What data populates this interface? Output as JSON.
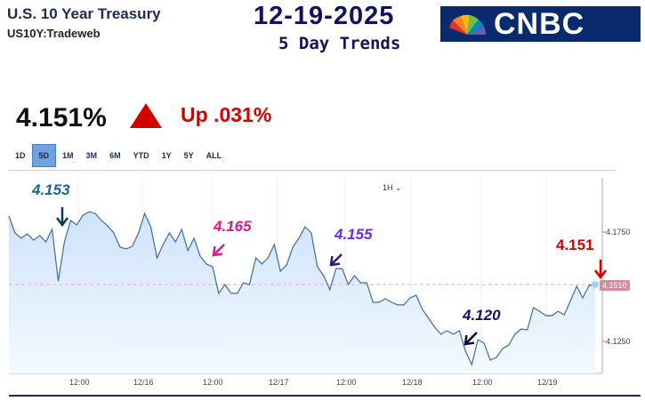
{
  "header": {
    "title": "U.S. 10 Year Treasury",
    "symbol": "US10Y:Tradeweb",
    "date": "12-19-2025",
    "subtitle": "5 Day Trends",
    "logo": "CNBC"
  },
  "quote": {
    "price": "4.151%",
    "direction": "up-triangle-icon",
    "change": "Up .031%",
    "up_color": "#d40000"
  },
  "ranges": [
    {
      "label": "1D"
    },
    {
      "label": "5D",
      "active": true
    },
    {
      "label": "1M"
    },
    {
      "label": "3M"
    },
    {
      "label": "6M"
    },
    {
      "label": "YTD"
    },
    {
      "label": "1Y"
    },
    {
      "label": "5Y"
    },
    {
      "label": "ALL"
    }
  ],
  "interval": "1H",
  "annotations": [
    {
      "text": "4.153",
      "color": "#1a6a8a"
    },
    {
      "text": "4.165",
      "color": "#e0198a"
    },
    {
      "text": "4.155",
      "color": "#6a2cf0"
    },
    {
      "text": "4.120",
      "color": "#12136e"
    },
    {
      "text": "4.151",
      "color": "#d40000"
    }
  ],
  "chart_data": {
    "type": "area",
    "title": "U.S. 10 Year Treasury 5 Day",
    "ylim": [
      4.107,
      4.19
    ],
    "yticks": [
      "4.1750",
      "4.1250"
    ],
    "ytick_values": [
      4.175,
      4.125
    ],
    "xticks": [
      "12:00",
      "12/16",
      "12:00",
      "12/17",
      "12:00",
      "12/18",
      "12:00",
      "12/19"
    ],
    "last_value_label": "4.1510",
    "values": [
      4.1823,
      4.1746,
      4.1722,
      4.1742,
      4.1713,
      4.1734,
      4.1705,
      4.1762,
      4.1526,
      4.1705,
      4.1803,
      4.1783,
      4.1827,
      4.1843,
      4.1835,
      4.1803,
      4.1778,
      4.1746,
      4.1681,
      4.1673,
      4.1685,
      4.1746,
      4.1835,
      4.1774,
      4.1632,
      4.1693,
      4.1746,
      4.1705,
      4.1762,
      4.1665,
      4.1722,
      4.164,
      4.1604,
      4.1591,
      4.147,
      4.151,
      4.147,
      4.147,
      4.1518,
      4.151,
      4.1632,
      4.1604,
      4.1632,
      4.1693,
      4.1571,
      4.16,
      4.1681,
      4.1722,
      4.1774,
      4.1746,
      4.1591,
      4.1551,
      4.1486,
      4.1583,
      4.1583,
      4.151,
      4.1551,
      4.1518,
      4.1518,
      4.1429,
      4.1429,
      4.1445,
      4.1429,
      4.1417,
      4.1417,
      4.1449,
      4.1461,
      4.1396,
      4.1356,
      4.1315,
      4.1283,
      4.1299,
      4.1283,
      4.1299,
      4.1205,
      4.1144,
      4.1258,
      4.1242,
      4.1165,
      4.1177,
      4.1217,
      4.1234,
      4.1283,
      4.1307,
      4.1303,
      4.1405,
      4.1388,
      4.1368,
      4.1368,
      4.1388,
      4.1372,
      4.1437,
      4.1502,
      4.1449,
      4.1506,
      4.151
    ]
  }
}
